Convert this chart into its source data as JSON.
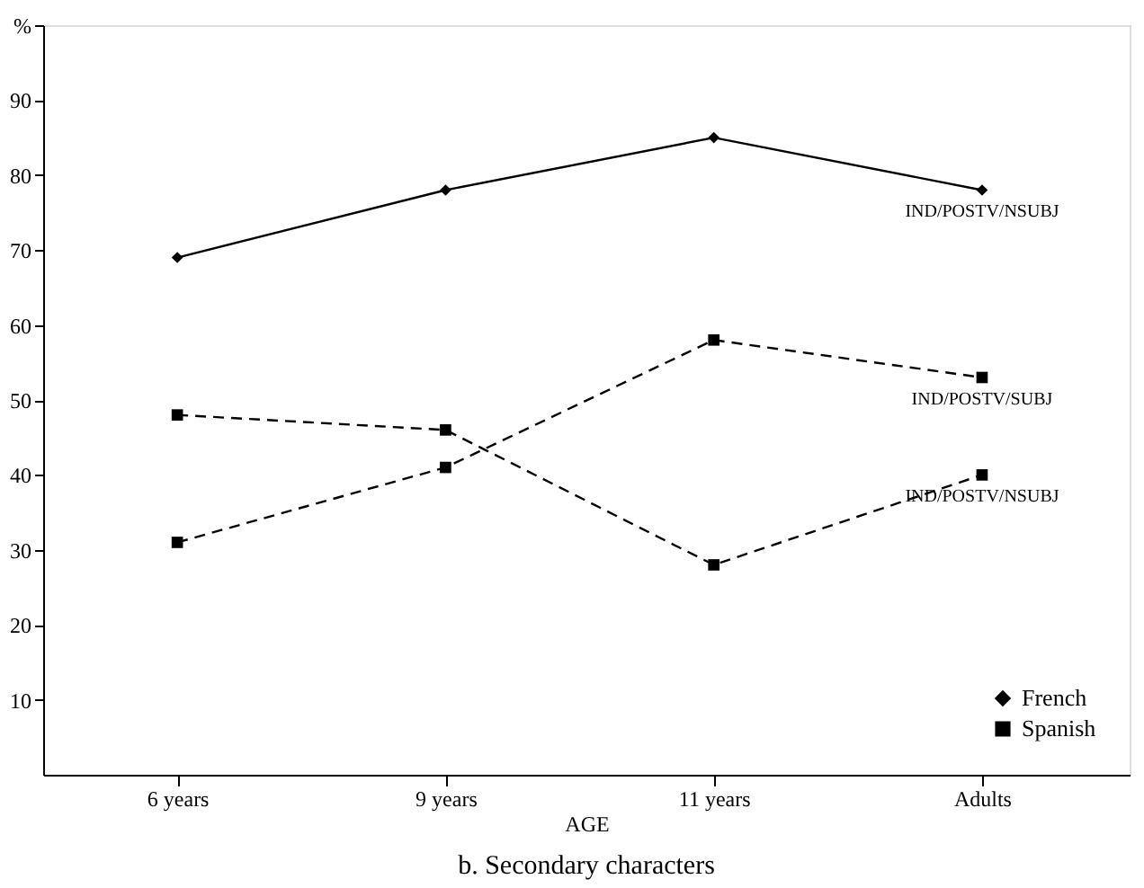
{
  "chart_data": {
    "type": "line",
    "title": "b. Secondary characters",
    "xlabel": "AGE",
    "categories": [
      "6 years",
      "9 years",
      "11 years",
      "Adults"
    ],
    "series": [
      {
        "name": "French",
        "color": "#000000",
        "values": [
          69,
          78,
          85,
          78
        ],
        "line_style": "solid",
        "marker": "diamond"
      },
      {
        "name": "Spanish",
        "color": "#000000",
        "values": [
          48,
          46,
          28,
          40
        ],
        "line_style": "dashed",
        "marker": "square"
      },
      {
        "color": "#000000",
        "values": [
          31,
          41,
          58,
          53
        ],
        "line_style": "dashed",
        "marker": "square"
      }
    ],
    "annotations": [
      {
        "text": "IND/POSTV/NSUBJ",
        "x": "Adults",
        "y": 78
      },
      {
        "text": "IND/POSTV/SUBJ",
        "x": "Adults",
        "y": 53
      },
      {
        "text": "IND/POSTV/NSUBJ",
        "x": "Adults",
        "y": 40
      }
    ],
    "ylim": [
      0,
      100
    ],
    "yticks": [
      10,
      20,
      30,
      40,
      50,
      60,
      70,
      80,
      90,
      {
        "value": 100,
        "label": "%"
      }
    ],
    "grid": false,
    "legend": "bottom right"
  }
}
